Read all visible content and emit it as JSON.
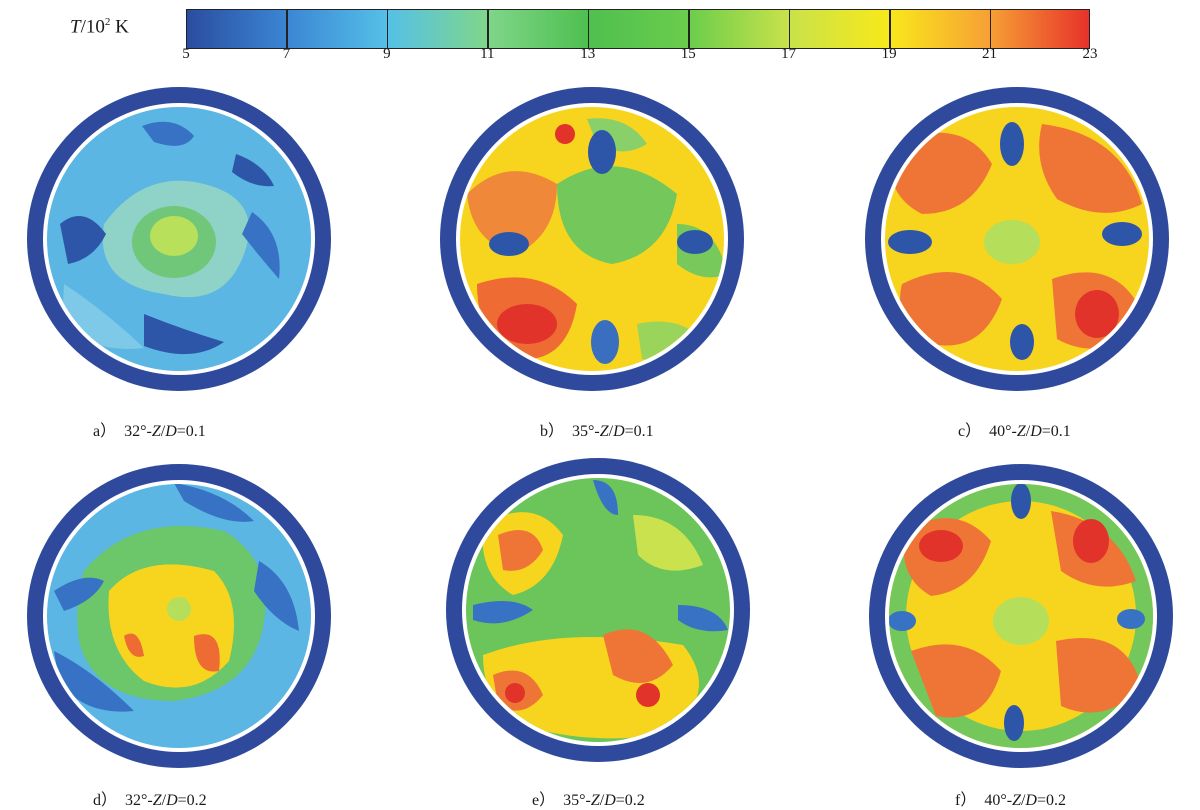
{
  "legend": {
    "title_prefix": "T",
    "title_mid": "/10",
    "title_sup": "2",
    "title_unit": " K",
    "ticks": [
      "5",
      "7",
      "9",
      "11",
      "13",
      "15",
      "17",
      "19",
      "21",
      "23"
    ],
    "colors": [
      "#2b4da0",
      "#3b86d4",
      "#55c0e8",
      "#7fd68a",
      "#4fbf4f",
      "#6acd4c",
      "#c8e24a",
      "#f8e91a",
      "#f7a135",
      "#e6322a"
    ]
  },
  "panels": [
    {
      "id": "a",
      "caption": "a）　32°-Z/D=0.1"
    },
    {
      "id": "b",
      "caption": "b）　35°-Z/D=0.1"
    },
    {
      "id": "c",
      "caption": "c）　40°-Z/D=0.1"
    },
    {
      "id": "d",
      "caption": "d）　32°-Z/D=0.2"
    },
    {
      "id": "e",
      "caption": "e）　35°-Z/D=0.2"
    },
    {
      "id": "f",
      "caption": "f）　40°-Z/D=0.2"
    }
  ],
  "chart_data": {
    "type": "heatmap",
    "colorbar": {
      "label": "T/10^2 K",
      "min": 5,
      "max": 23,
      "ticks": [
        5,
        7,
        9,
        11,
        13,
        15,
        17,
        19,
        21,
        23
      ]
    },
    "panels": [
      {
        "id": "a",
        "angle_deg": 32,
        "Z_over_D": 0.1
      },
      {
        "id": "b",
        "angle_deg": 35,
        "Z_over_D": 0.1
      },
      {
        "id": "c",
        "angle_deg": 40,
        "Z_over_D": 0.1
      },
      {
        "id": "d",
        "angle_deg": 32,
        "Z_over_D": 0.2
      },
      {
        "id": "e",
        "angle_deg": 35,
        "Z_over_D": 0.2
      },
      {
        "id": "f",
        "angle_deg": 40,
        "Z_over_D": 0.2
      }
    ]
  }
}
